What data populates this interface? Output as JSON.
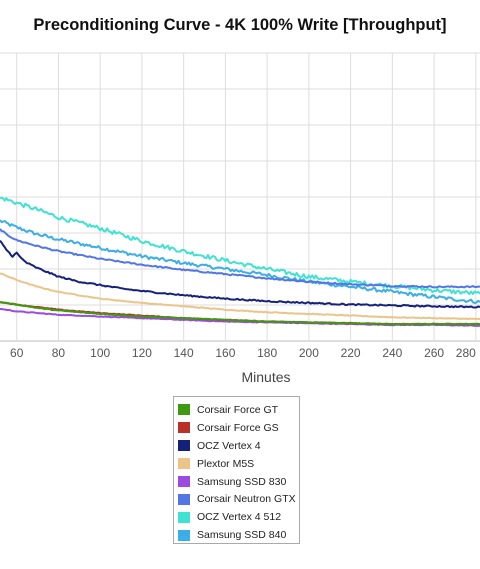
{
  "chart_data": {
    "type": "line",
    "title": "Preconditioning Curve - 4K 100% Write [Throughput]",
    "xlabel": "Minutes",
    "ylabel": "",
    "xlim": [
      52,
      282
    ],
    "ylim": [
      0,
      340
    ],
    "x_ticks": [
      60,
      80,
      100,
      120,
      140,
      160,
      180,
      200,
      220,
      240,
      260,
      280
    ],
    "grid": true,
    "legend_position": "bottom-center",
    "series": [
      {
        "name": "Corsair Force GT",
        "color": "#3e9a10",
        "x": [
          52,
          60,
          70,
          80,
          100,
          120,
          140,
          160,
          180,
          200,
          220,
          240,
          260,
          282
        ],
        "values": [
          46,
          43,
          39,
          36,
          32,
          29,
          27,
          25,
          23,
          22,
          21,
          20,
          20,
          20
        ]
      },
      {
        "name": "Corsair Force GS",
        "color": "#b8322a",
        "x": [
          52,
          60,
          70,
          80,
          100,
          120,
          140,
          160,
          180,
          200,
          220,
          240,
          260,
          282
        ],
        "values": [
          46,
          43,
          40,
          37,
          33,
          30,
          27,
          25,
          23,
          22,
          21,
          20,
          20,
          20
        ]
      },
      {
        "name": "OCZ Vertex 4",
        "color": "#14207a",
        "x": [
          52,
          55,
          58,
          60,
          62,
          65,
          70,
          80,
          90,
          100,
          110,
          120,
          140,
          160,
          180,
          200,
          220,
          240,
          260,
          282
        ],
        "values": [
          118,
          108,
          100,
          104,
          98,
          92,
          86,
          76,
          70,
          66,
          62,
          59,
          54,
          50,
          47,
          45,
          43,
          42,
          41,
          40
        ]
      },
      {
        "name": "Plextor M5S",
        "color": "#eac488",
        "x": [
          52,
          60,
          70,
          80,
          100,
          120,
          140,
          160,
          180,
          200,
          220,
          240,
          260,
          282
        ],
        "values": [
          80,
          72,
          64,
          58,
          50,
          45,
          41,
          37,
          34,
          32,
          30,
          28,
          27,
          26
        ]
      },
      {
        "name": "Samsung SSD 830",
        "color": "#9b4be0",
        "x": [
          52,
          60,
          70,
          80,
          100,
          120,
          140,
          160,
          180,
          200,
          220,
          240,
          260,
          282
        ],
        "values": [
          38,
          35,
          33,
          31,
          29,
          27,
          25,
          23,
          22,
          21,
          20,
          19,
          19,
          18
        ]
      },
      {
        "name": "Corsair Neutron GTX",
        "color": "#5276e6",
        "x": [
          52,
          55,
          60,
          70,
          80,
          100,
          120,
          140,
          160,
          180,
          200,
          220,
          240,
          260,
          282
        ],
        "values": [
          132,
          126,
          119,
          112,
          106,
          97,
          90,
          84,
          79,
          74,
          70,
          67,
          65,
          64,
          64
        ]
      },
      {
        "name": "OCZ Vertex 4 512",
        "color": "#40e2d2",
        "x": [
          52,
          55,
          60,
          70,
          80,
          100,
          120,
          140,
          160,
          180,
          200,
          220,
          240,
          260,
          282
        ],
        "values": [
          169,
          167,
          163,
          155,
          146,
          133,
          118,
          106,
          95,
          85,
          76,
          70,
          65,
          60,
          56
        ]
      },
      {
        "name": "Samsung SSD 840",
        "color": "#3aaee6",
        "x": [
          52,
          60,
          70,
          80,
          100,
          120,
          140,
          160,
          180,
          200,
          220,
          240,
          260,
          282
        ],
        "values": [
          142,
          134,
          126,
          120,
          110,
          100,
          92,
          85,
          78,
          70,
          64,
          58,
          52,
          46
        ]
      }
    ]
  }
}
